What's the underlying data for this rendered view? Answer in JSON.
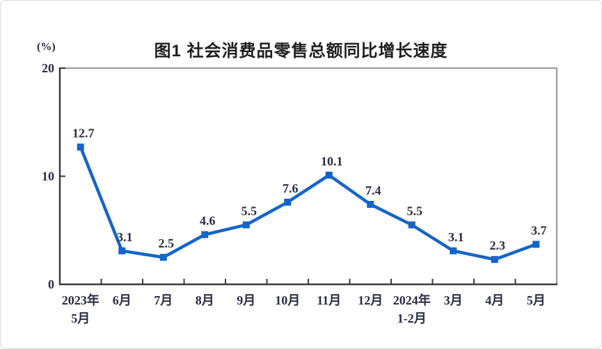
{
  "page": {
    "title": "图1  社会消费品零售总额同比增长速度",
    "y_axis_unit": "(%)"
  },
  "chart_data": {
    "type": "line",
    "title": "图1  社会消费品零售总额同比增长速度",
    "ylabel": "(%)",
    "xlabel": "",
    "ylim": [
      0,
      20
    ],
    "yticks": [
      0,
      10,
      20
    ],
    "grid": false,
    "legend_position": "none",
    "marker": "square",
    "line_color": "#1565c8",
    "label_color": "#2b2b44",
    "axis_dark_color": "#3a3a3a",
    "axis_light_color": "#a3a3a3",
    "categories": [
      [
        "2023年",
        "5月"
      ],
      [
        "6月"
      ],
      [
        "7月"
      ],
      [
        "8月"
      ],
      [
        "9月"
      ],
      [
        "10月"
      ],
      [
        "11月"
      ],
      [
        "12月"
      ],
      [
        "2024年",
        "1-2月"
      ],
      [
        "3月"
      ],
      [
        "4月"
      ],
      [
        "5月"
      ]
    ],
    "values": [
      12.7,
      3.1,
      2.5,
      4.6,
      5.5,
      7.6,
      10.1,
      7.4,
      5.5,
      3.1,
      2.3,
      3.7
    ],
    "point_labels": [
      "12.7",
      "3.1",
      "2.5",
      "4.6",
      "5.5",
      "7.6",
      "10.1",
      "7.4",
      "5.5",
      "3.1",
      "2.3",
      "3.7"
    ]
  }
}
